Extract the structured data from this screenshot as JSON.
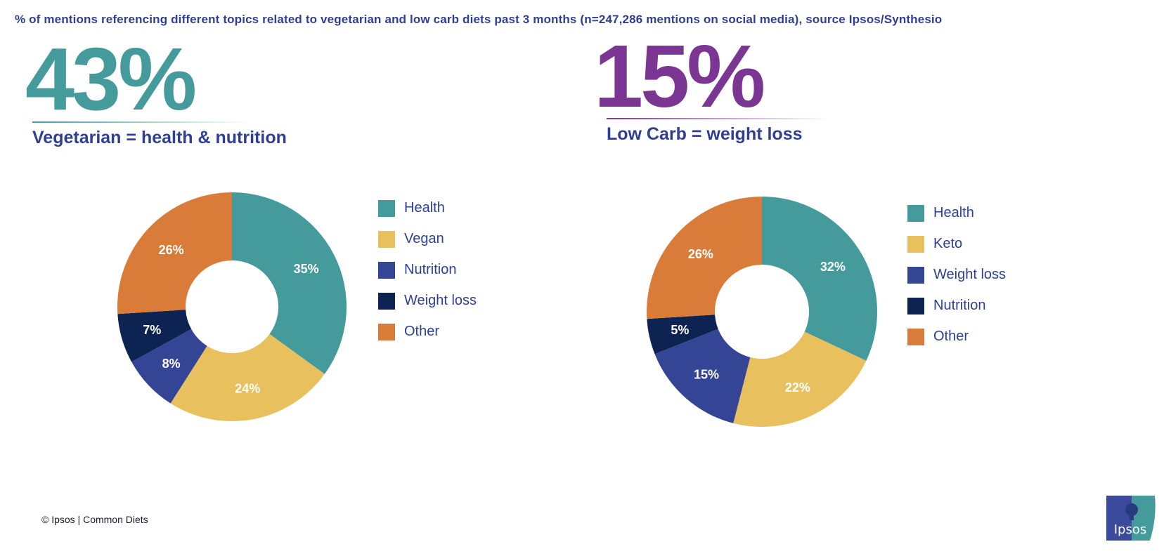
{
  "title": "% of mentions referencing different topics related to vegetarian and low carb diets past 3 months (n=247,286 mentions on social media), source Ipsos/Synthesio",
  "footer": "© Ipsos | Common Diets",
  "logo_text": "Ipsos",
  "colors": {
    "text": "#2e3f94",
    "teal": "#459b9b",
    "yellow": "#e8c05e",
    "blue": "#354596",
    "navy": "#0d2452",
    "orange": "#d97c3a",
    "purple": "#7b3694"
  },
  "panels": [
    {
      "headline": "43%",
      "subtitle": "Vegetarian = health & nutrition"
    },
    {
      "headline": "15%",
      "subtitle": "Low Carb = weight loss"
    }
  ],
  "chart_data": [
    {
      "type": "pie",
      "donut": true,
      "legend": "right",
      "categories": [
        "Health",
        "Vegan",
        "Nutrition",
        "Weight loss",
        "Other"
      ],
      "values": [
        35,
        24,
        8,
        7,
        26
      ],
      "labels": [
        "35%",
        "24%",
        "8%",
        "7%",
        "26%"
      ],
      "colors": [
        "#459b9b",
        "#e8c05e",
        "#354596",
        "#0d2452",
        "#d97c3a"
      ]
    },
    {
      "type": "pie",
      "donut": true,
      "legend": "right",
      "categories": [
        "Health",
        "Keto",
        "Weight loss",
        "Nutrition",
        "Other"
      ],
      "values": [
        32,
        22,
        15,
        5,
        26
      ],
      "labels": [
        "32%",
        "22%",
        "15%",
        "5%",
        "26%"
      ],
      "colors": [
        "#459b9b",
        "#e8c05e",
        "#354596",
        "#0d2452",
        "#d97c3a"
      ]
    }
  ]
}
